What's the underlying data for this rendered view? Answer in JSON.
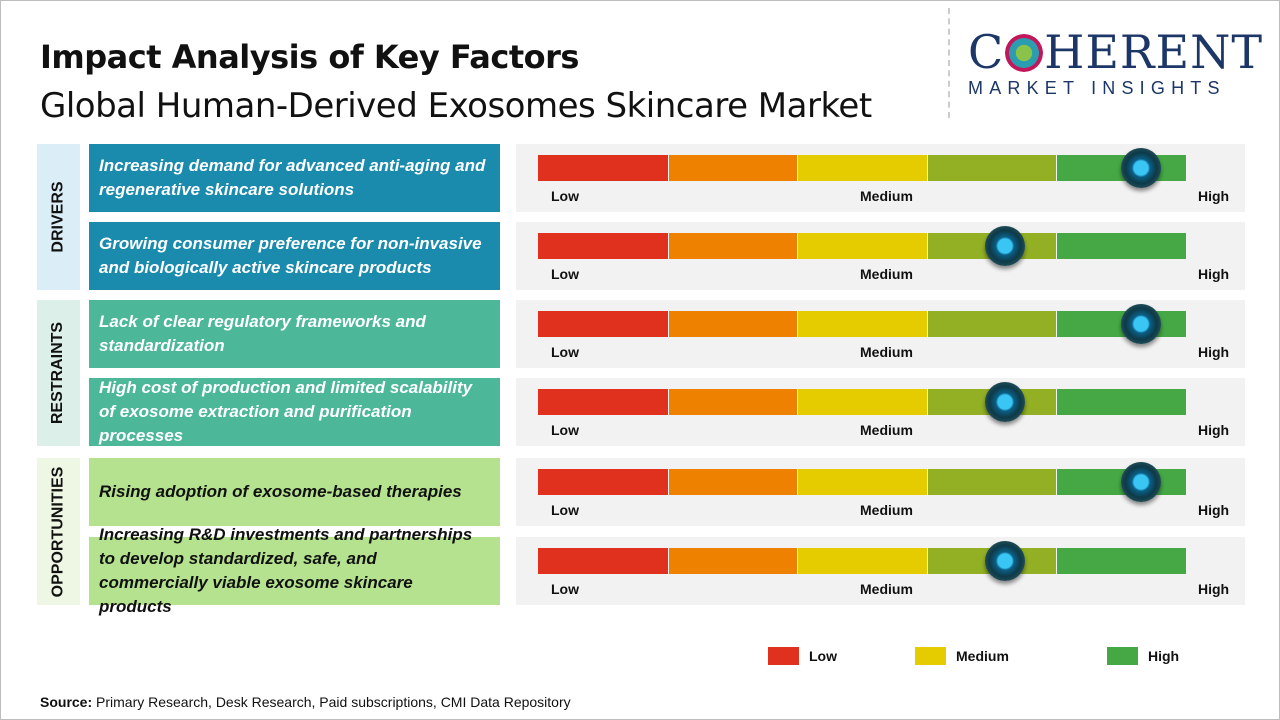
{
  "title": "Impact Analysis of Key Factors",
  "subtitle": "Global Human-Derived Exosomes Skincare Market",
  "logo": {
    "top": "COHERENT",
    "bottom": "MARKET INSIGHTS"
  },
  "colors": {
    "low": "#e0301e",
    "low_medium": "#ee8200",
    "medium": "#e5cc00",
    "medium_high": "#93b025",
    "high": "#45a845",
    "drivers": "#1a8aad",
    "restraints": "#4db79a",
    "opportunities": "#b5e28f"
  },
  "scale_labels": {
    "low": "Low",
    "medium": "Medium",
    "high": "High"
  },
  "chart_data": {
    "type": "gauge",
    "scale": [
      "Low",
      "Medium",
      "High"
    ],
    "categories": [
      {
        "name": "DRIVERS",
        "factors": [
          {
            "text": "Increasing demand for advanced anti-aging and regenerative skincare solutions",
            "impact": 0.93
          },
          {
            "text": "Growing consumer preference for non-invasive and biologically active skincare products",
            "impact": 0.72
          }
        ]
      },
      {
        "name": "RESTRAINTS",
        "factors": [
          {
            "text": "Lack of clear regulatory frameworks and standardization",
            "impact": 0.93
          },
          {
            "text": "High cost of production and limited scalability of exosome extraction and purification processes",
            "impact": 0.72
          }
        ]
      },
      {
        "name": "OPPORTUNITIES",
        "factors": [
          {
            "text": "Rising adoption of exosome-based therapies",
            "impact": 0.93
          },
          {
            "text": "Increasing R&D investments and partnerships to develop standardized, safe, and commercially viable exosome skincare products",
            "impact": 0.72
          }
        ]
      }
    ],
    "legend": [
      "Low",
      "Medium",
      "High"
    ]
  },
  "source": {
    "label": "Source:",
    "text": " Primary Research, Desk Research, Paid subscriptions, CMI Data Repository"
  }
}
